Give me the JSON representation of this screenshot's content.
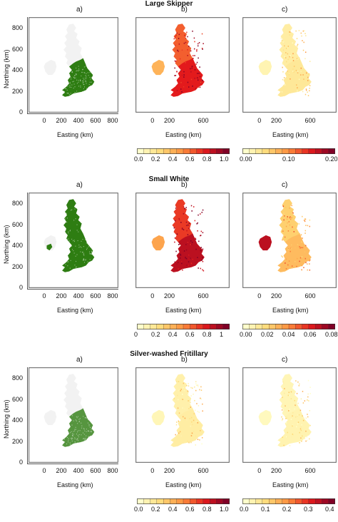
{
  "colors": {
    "occurrence_green": "#2e7d12",
    "empty_land": "#f2f2f2",
    "heat_low": "#ffffcc",
    "heat_mid": "#f68b1f",
    "heat_high": "#b10026",
    "heat_darkest": "#7a0010"
  },
  "axis_titles": {
    "x": "Easting (km)",
    "y": "Northing (km)"
  },
  "panel_labels": {
    "a": "a)",
    "b": "b)",
    "c": "c)"
  },
  "x_ticks_a": [
    "0",
    "200",
    "400",
    "600",
    "800"
  ],
  "x_ticks_bc": [
    "0",
    "200",
    "600"
  ],
  "y_ticks": [
    "0",
    "200",
    "400",
    "600",
    "800"
  ],
  "species": [
    {
      "name": "Large Skipper",
      "legend_b": {
        "ticks": [
          "0.0",
          "0.2",
          "0.4",
          "0.6",
          "0.8",
          "1.0"
        ],
        "range": [
          0,
          1
        ]
      },
      "legend_c": {
        "ticks": [
          "0.00",
          "0.10",
          "0.20"
        ],
        "range": [
          0,
          0.28
        ]
      },
      "intensity_b": 0.75,
      "intensity_c": 0.15
    },
    {
      "name": "Small White",
      "legend_b": {
        "ticks": [
          "0",
          "0.2",
          "0.4",
          "0.6",
          "0.8",
          "1"
        ],
        "range": [
          0,
          1
        ]
      },
      "legend_c": {
        "ticks": [
          "0.00",
          "0.02",
          "0.04",
          "0.06",
          "0.08"
        ],
        "range": [
          0,
          0.09
        ]
      },
      "intensity_b": 0.85,
      "intensity_c": 0.35
    },
    {
      "name": "Silver-washed Fritillary",
      "legend_b": {
        "ticks": [
          "0.0",
          "0.2",
          "0.4",
          "0.6",
          "0.8",
          "1.0"
        ],
        "range": [
          0,
          1
        ]
      },
      "legend_c": {
        "ticks": [
          "0.0",
          "0.1",
          "0.2",
          "0.3",
          "0.4"
        ],
        "range": [
          0,
          0.42
        ]
      },
      "intensity_b": 0.12,
      "intensity_c": 0.08
    }
  ]
}
